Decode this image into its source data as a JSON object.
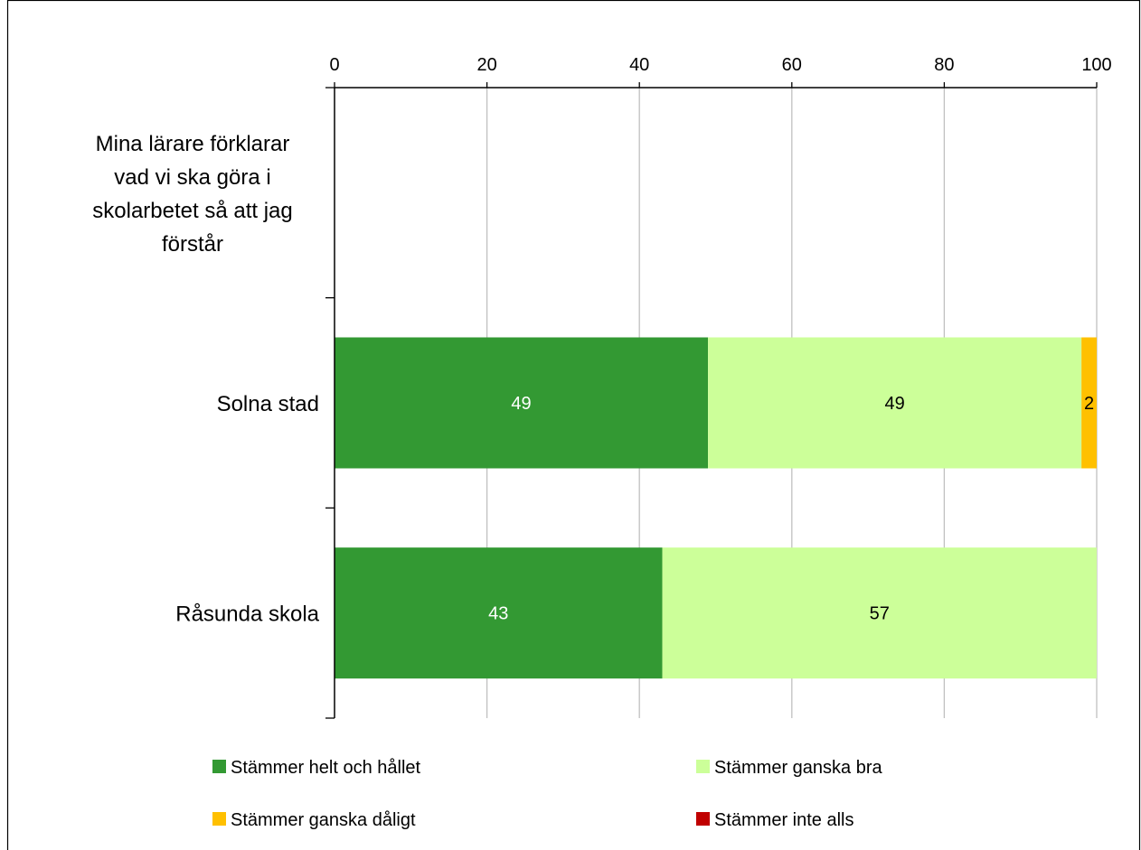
{
  "chart_data": {
    "type": "bar",
    "orientation": "horizontal",
    "stacked": true,
    "categories": [
      "Mina lärare förklarar vad vi ska göra i skolarbetet så att jag förstår",
      "Solna stad",
      "Råsunda skola"
    ],
    "category_label_lines": [
      [
        "Mina lärare förklarar",
        "vad vi ska göra i",
        "skolarbetet så att jag",
        "förstår"
      ],
      [
        "Solna stad"
      ],
      [
        "Råsunda skola"
      ]
    ],
    "series": [
      {
        "name": "Stämmer helt och hållet",
        "color": "#339933",
        "label_color": "#ffffff",
        "values": [
          null,
          49,
          43
        ]
      },
      {
        "name": "Stämmer ganska bra",
        "color": "#ccff99",
        "label_color": "#000000",
        "values": [
          null,
          49,
          57
        ]
      },
      {
        "name": "Stämmer ganska dåligt",
        "color": "#ffc000",
        "label_color": "#000000",
        "values": [
          null,
          2,
          0
        ]
      },
      {
        "name": "Stämmer inte alls",
        "color": "#c00000",
        "label_color": "#ffffff",
        "values": [
          null,
          0,
          0
        ]
      }
    ],
    "xlim": [
      0,
      100
    ],
    "xticks": [
      0,
      20,
      40,
      60,
      80,
      100
    ],
    "x_axis_position": "top",
    "grid": true,
    "legend_position": "bottom",
    "title": "",
    "xlabel": "",
    "ylabel": ""
  }
}
